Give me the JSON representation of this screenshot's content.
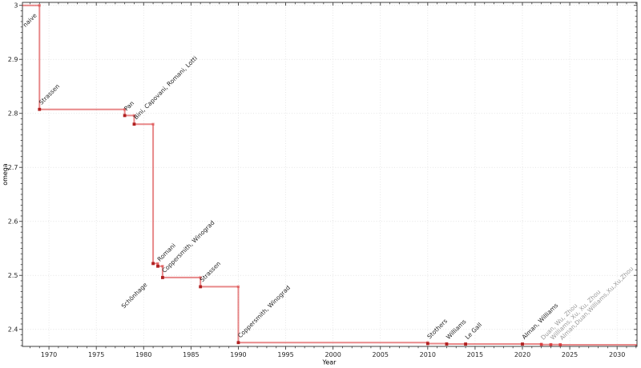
{
  "figure": {
    "background": "#ffffff"
  },
  "chart_data": {
    "type": "line",
    "subtype": "step-post",
    "title": "",
    "xlabel": "Year",
    "ylabel": "omega",
    "xlim": [
      1967.2,
      2032.1
    ],
    "ylim": [
      2.3685,
      3.0055
    ],
    "grid": "dotted-major-both",
    "legend": "none",
    "x_major_ticks": [
      1970,
      1975,
      1980,
      1985,
      1990,
      1995,
      2000,
      2005,
      2010,
      2015,
      2020,
      2025,
      2030
    ],
    "x_minor_step": 1,
    "y_major_ticks": [
      {
        "value": 2.4,
        "label": "2.4"
      },
      {
        "value": 2.5,
        "label": "2.5"
      },
      {
        "value": 2.6,
        "label": "2.6"
      },
      {
        "value": 2.7,
        "label": "2.7"
      },
      {
        "value": 2.8,
        "label": "2.8"
      },
      {
        "value": 2.9,
        "label": "2.9"
      },
      {
        "value": 3.0,
        "label": "3"
      }
    ],
    "y_minor_step": 0.01,
    "start": {
      "label": "naive",
      "omega": 3.0,
      "label_side": "sw",
      "label_dx": -3,
      "label_dy": 13
    },
    "points": [
      {
        "year": 1969,
        "omega": 2.8074,
        "label": "Strassen",
        "label_side": "ne",
        "provisional": false
      },
      {
        "year": 1978,
        "omega": 2.796,
        "label": "Pan",
        "label_side": "ne",
        "provisional": false
      },
      {
        "year": 1979,
        "omega": 2.78,
        "label": "Bini, Capovani, Romani, Lotti",
        "label_side": "ne",
        "provisional": false
      },
      {
        "year": 1981,
        "omega": 2.522,
        "label": "Schönhage",
        "label_side": "sw",
        "label_dx": -7,
        "label_dy": 27,
        "provisional": false
      },
      {
        "year": 1981.5,
        "omega": 2.517,
        "label": "Romani",
        "label_side": "ne",
        "provisional": false
      },
      {
        "year": 1982,
        "omega": 2.496,
        "label": "Coppersmith, Winograd",
        "label_side": "ne",
        "provisional": false
      },
      {
        "year": 1986,
        "omega": 2.479,
        "label": "Strassen",
        "label_side": "ne",
        "provisional": false
      },
      {
        "year": 1990,
        "omega": 2.3755,
        "label": "Coppersmith, Winograd",
        "label_side": "ne",
        "provisional": false
      },
      {
        "year": 2010,
        "omega": 2.3737,
        "label": "Stothers",
        "label_side": "ne",
        "provisional": false
      },
      {
        "year": 2012,
        "omega": 2.3729,
        "label": "Williams",
        "label_side": "ne",
        "provisional": false
      },
      {
        "year": 2014,
        "omega": 2.37287,
        "label": "Le Gall",
        "label_side": "ne",
        "provisional": false
      },
      {
        "year": 2020,
        "omega": 2.37286,
        "label": "Alman, Williams",
        "label_side": "ne",
        "provisional": false
      },
      {
        "year": 2022,
        "omega": 2.37188,
        "label": "Duan, Wu, Zhou",
        "label_side": "ne",
        "provisional": true
      },
      {
        "year": 2023,
        "omega": 2.371866,
        "label": "Williams, Xu, Xu, Zhou",
        "label_side": "ne",
        "provisional": true
      },
      {
        "year": 2024,
        "omega": 2.371552,
        "label": "Alman,Duan,Williams,Xu,Xu,Zhou",
        "label_side": "ne",
        "provisional": true
      }
    ],
    "colors": {
      "line": "rgba(214,39,40,0.55)",
      "vertex_marker": "rgba(214,39,40,0.40)",
      "marker": "#b02121",
      "marker_provisional": "rgba(214,39,40,0.42)",
      "label": "#1f1f1f",
      "label_provisional": "#9b9b9b",
      "grid": "#dcdcdc",
      "spine": "#3c3c3c",
      "tick": "#3c3c3c",
      "tick_label": "#262626",
      "axis_label": "#262626"
    }
  }
}
